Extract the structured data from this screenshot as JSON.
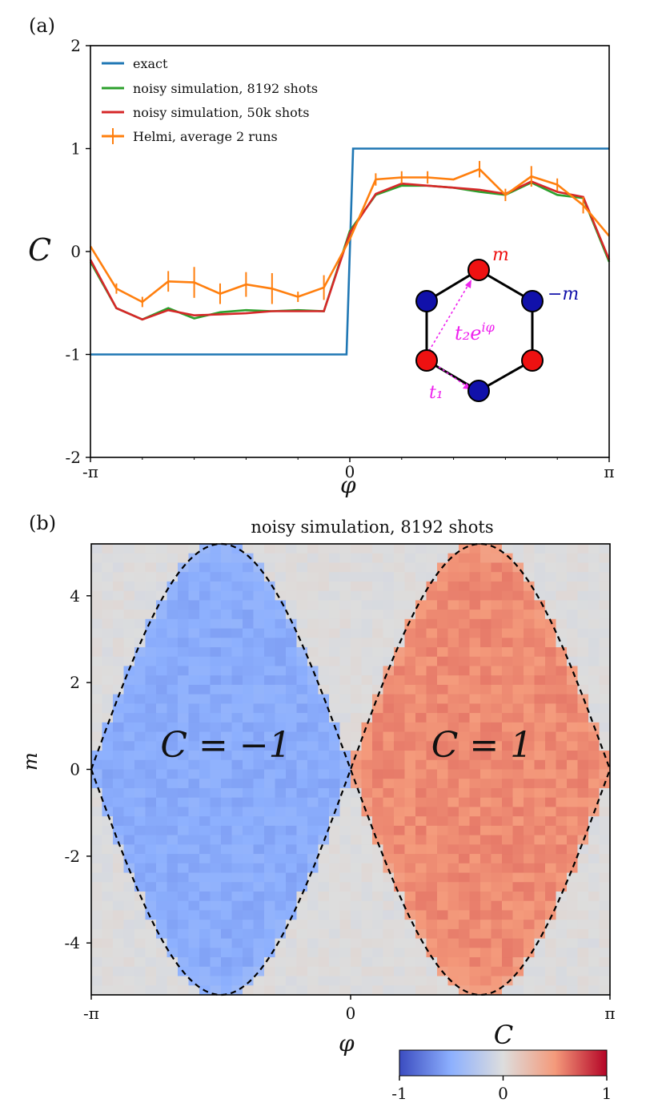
{
  "chart_data": [
    {
      "panel": "(a)",
      "type": "line",
      "title": "",
      "xlabel": "φ",
      "ylabel": "C",
      "xlim": [
        -3.1416,
        3.1416
      ],
      "ylim": [
        -2,
        2
      ],
      "xticks": [
        "-π",
        "0",
        "π"
      ],
      "yticks": [
        "-2",
        "-1",
        "0",
        "1",
        "2"
      ],
      "legend": [
        "exact",
        "noisy simulation, 8192 shots",
        "noisy simulation, 50k shots",
        "Helmi, average 2 runs"
      ],
      "legend_position": "top-left",
      "colors": {
        "exact": "#1f77b4",
        "sim8192": "#2ca02c",
        "sim50k": "#d62728",
        "helmi": "#ff7f0e"
      },
      "series": [
        {
          "name": "exact",
          "x": [
            -3.1416,
            -0.04,
            0.04,
            3.1416
          ],
          "values": [
            -1,
            -1,
            1,
            1
          ]
        },
        {
          "name": "noisy simulation, 8192 shots",
          "x": [
            -3.1416,
            -2.827,
            -2.513,
            -2.199,
            -1.885,
            -1.571,
            -1.257,
            -0.942,
            -0.628,
            -0.314,
            0,
            0.314,
            0.628,
            0.942,
            1.257,
            1.571,
            1.885,
            2.199,
            2.513,
            2.827,
            3.1416
          ],
          "values": [
            -0.1,
            -0.55,
            -0.66,
            -0.55,
            -0.65,
            -0.59,
            -0.57,
            -0.58,
            -0.57,
            -0.58,
            0.2,
            0.55,
            0.64,
            0.64,
            0.62,
            0.58,
            0.55,
            0.67,
            0.55,
            0.52,
            -0.1
          ]
        },
        {
          "name": "noisy simulation, 50k shots",
          "x": [
            -3.1416,
            -2.827,
            -2.513,
            -2.199,
            -1.885,
            -1.571,
            -1.257,
            -0.942,
            -0.628,
            -0.314,
            0,
            0.314,
            0.628,
            0.942,
            1.257,
            1.571,
            1.885,
            2.199,
            2.513,
            2.827,
            3.1416
          ],
          "values": [
            -0.08,
            -0.55,
            -0.66,
            -0.57,
            -0.62,
            -0.61,
            -0.6,
            -0.58,
            -0.58,
            -0.58,
            0.18,
            0.56,
            0.66,
            0.64,
            0.62,
            0.6,
            0.56,
            0.68,
            0.58,
            0.53,
            -0.08
          ]
        },
        {
          "name": "Helmi, average 2 runs",
          "x": [
            -3.1416,
            -2.827,
            -2.513,
            -2.199,
            -1.885,
            -1.571,
            -1.257,
            -0.942,
            -0.628,
            -0.314,
            0,
            0.314,
            0.628,
            0.942,
            1.257,
            1.571,
            1.885,
            2.199,
            2.513,
            2.827,
            3.1416
          ],
          "values": [
            0.05,
            -0.36,
            -0.49,
            -0.29,
            -0.3,
            -0.41,
            -0.32,
            -0.36,
            -0.44,
            -0.35,
            0.12,
            0.7,
            0.72,
            0.72,
            0.7,
            0.8,
            0.55,
            0.73,
            0.65,
            0.45,
            0.15
          ],
          "errors": [
            0,
            0.05,
            0.05,
            0.1,
            0.15,
            0.1,
            0.12,
            0.15,
            0.05,
            0.12,
            0,
            0.06,
            0.06,
            0.06,
            0,
            0.08,
            0.06,
            0.1,
            0.06,
            0.08,
            0
          ]
        }
      ],
      "inset": {
        "labels": {
          "m": "m",
          "minus_m": "−m",
          "t1": "t₁",
          "t2": "t₂e",
          "t2_sup": "iφ"
        }
      }
    },
    {
      "panel": "(b)",
      "type": "heatmap",
      "title": "noisy simulation, 8192 shots",
      "xlabel": "φ",
      "ylabel": "m",
      "xlim": [
        -3.1416,
        3.1416
      ],
      "ylim": [
        -5.196,
        5.196
      ],
      "xticks": [
        "-π",
        "0",
        "π"
      ],
      "yticks": [
        "-4",
        "-2",
        "0",
        "2",
        "4"
      ],
      "ytick_values": [
        -4,
        -2,
        0,
        2,
        4
      ],
      "boundary": "m = ±3√3·sin(φ)",
      "boundary_max": 5.196,
      "regions": [
        {
          "label": "C = −1",
          "phi_center": -1.5708,
          "value": -0.52
        },
        {
          "label": "C = 1",
          "phi_center": 1.5708,
          "value": 0.55
        }
      ],
      "grid_size": [
        48,
        48
      ],
      "colorbar": {
        "label": "C",
        "min": -1,
        "max": 1,
        "ticks": [
          "-1",
          "0",
          "1"
        ],
        "colormap": "coolwarm"
      }
    }
  ],
  "labels": {
    "panel_a": "(a)",
    "panel_b": "(b)"
  }
}
